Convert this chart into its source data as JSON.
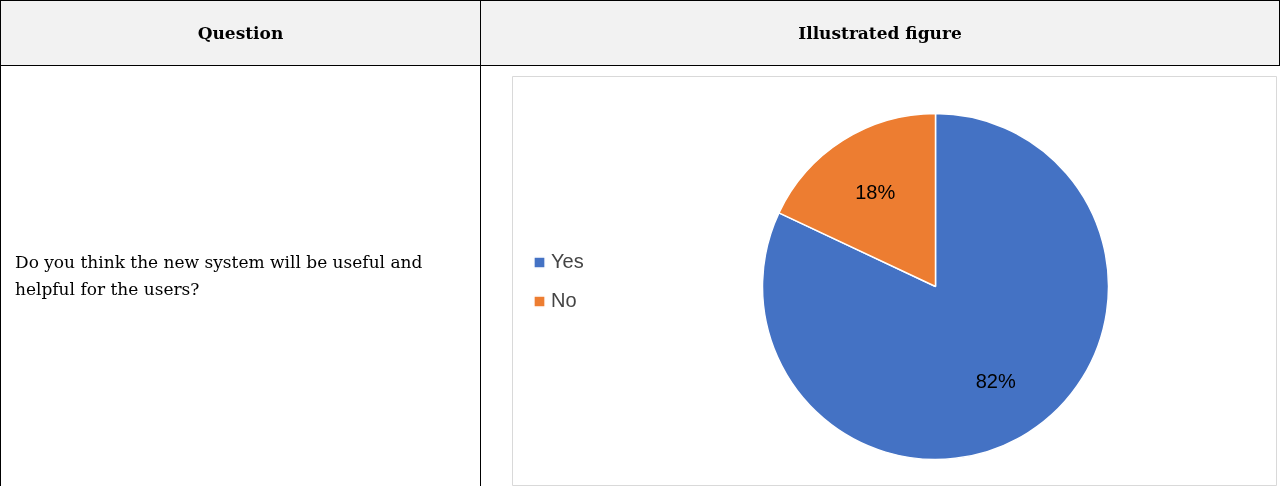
{
  "chart_data": {
    "type": "pie",
    "categories": [
      "Yes",
      "No"
    ],
    "values": [
      82,
      18
    ],
    "colors": [
      "#4472c4",
      "#ed7d31"
    ],
    "value_labels": [
      "82%",
      "18%"
    ],
    "legend": "left",
    "annotations": [
      "Question",
      "Illustrated figure",
      "Do you think the new system will be useful and helpful for the users?"
    ]
  }
}
